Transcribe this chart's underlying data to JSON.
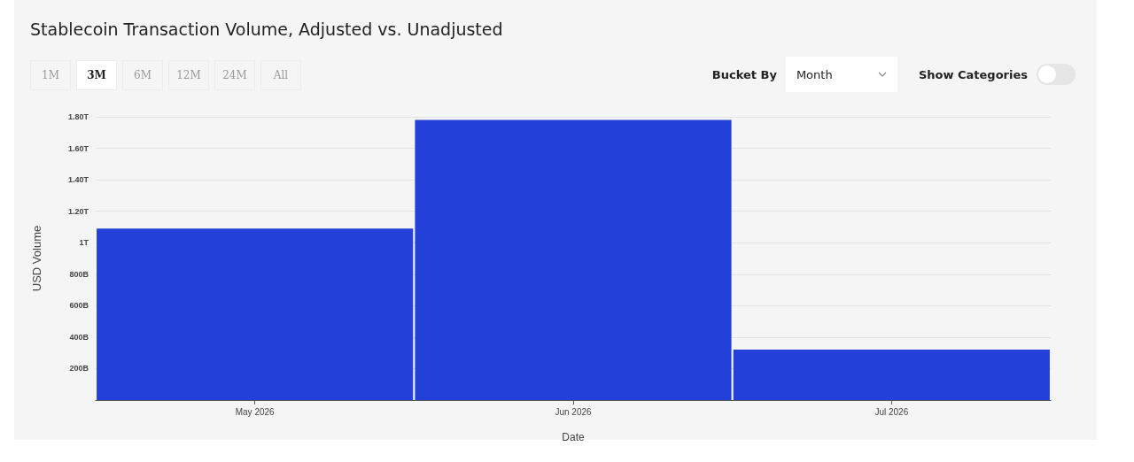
{
  "chart_data": {
    "type": "bar",
    "title": "Stablecoin Transaction Volume, Adjusted vs. Unadjusted",
    "xlabel": "Date",
    "ylabel": "USD Volume",
    "categories": [
      "May 2026",
      "Jun 2026",
      "Jul 2026"
    ],
    "values": [
      1090000000000,
      1780000000000,
      320000000000
    ],
    "color": "#2340d8",
    "ylim": [
      0,
      1800000000000
    ],
    "yticks": [
      {
        "value": 200000000000,
        "label": "200B"
      },
      {
        "value": 400000000000,
        "label": "400B"
      },
      {
        "value": 600000000000,
        "label": "600B"
      },
      {
        "value": 800000000000,
        "label": "800B"
      },
      {
        "value": 1000000000000,
        "label": "1T"
      },
      {
        "value": 1200000000000,
        "label": "1.20T"
      },
      {
        "value": 1400000000000,
        "label": "1.40T"
      },
      {
        "value": 1600000000000,
        "label": "1.60T"
      },
      {
        "value": 1800000000000,
        "label": "1.80T"
      }
    ],
    "grid": "y",
    "annotations": [
      "1M",
      "3M",
      "6M",
      "12M",
      "24M",
      "All",
      "Bucket By",
      "Month",
      "Show Categories"
    ]
  }
}
